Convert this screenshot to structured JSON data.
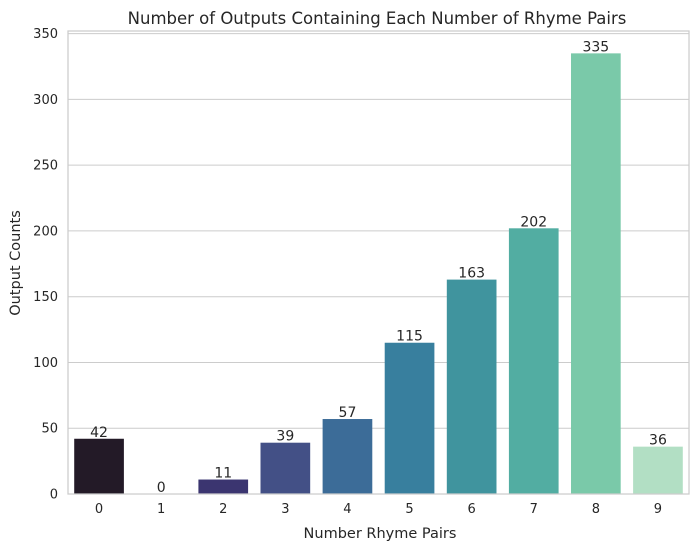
{
  "chart_data": {
    "type": "bar",
    "title": "Number of Outputs Containing Each Number of Rhyme Pairs",
    "xlabel": "Number Rhyme Pairs",
    "ylabel": "Output Counts",
    "categories": [
      "0",
      "1",
      "2",
      "3",
      "4",
      "5",
      "6",
      "7",
      "8",
      "9"
    ],
    "values": [
      42,
      0,
      11,
      39,
      57,
      115,
      163,
      202,
      335,
      36
    ],
    "data_labels": [
      "42",
      "0",
      "11",
      "39",
      "57",
      "115",
      "163",
      "202",
      "335",
      "36"
    ],
    "ylim": [
      0,
      352
    ],
    "yticks": [
      0,
      50,
      100,
      150,
      200,
      250,
      300,
      350
    ],
    "grid": "horizontal",
    "colors": [
      "#231a27",
      "#2c1e3d",
      "#3b3570",
      "#435086",
      "#3c6c98",
      "#387f9e",
      "#40949e",
      "#52ada2",
      "#7ac9a9",
      "#b2dfc4"
    ]
  }
}
